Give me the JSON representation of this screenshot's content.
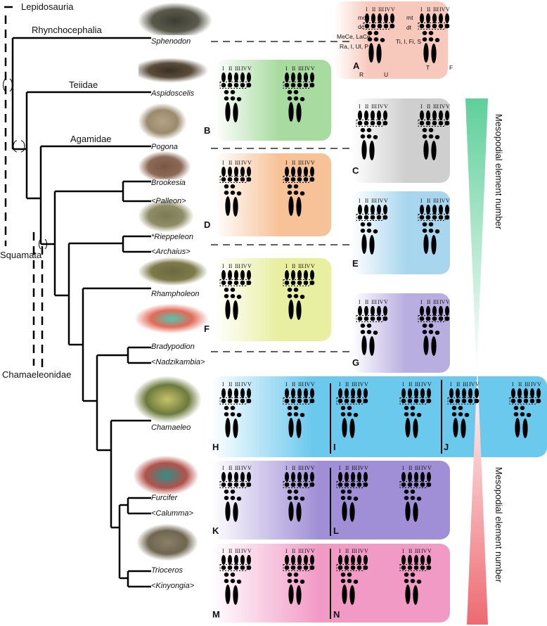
{
  "clades": {
    "lepidosauria": "Lepidosauria",
    "rhynchocephalia": "Rhynchocephalia",
    "teiidae": "Teiidae",
    "agamidae": "Agamidae",
    "squamata": "Squamata",
    "chamaeleonidae": "Chamaeleonidae"
  },
  "taxa": {
    "sphenodon": "Sphenodon",
    "aspidoscelis": "Aspidoscelis",
    "pogona": "Pogona",
    "brookesia": "Brookesia",
    "palleon": "<Palleon>",
    "rieppeleon": "*Rieppeleon",
    "archaius": "<Archaius>",
    "rhampholeon": "Rhampholeon",
    "bradypodion": "Bradypodion",
    "nadzikambia": "<Nadzikambia>",
    "chamaeleo": "Chamaeleo",
    "furcifer": "Furcifer",
    "calumma": "<Calumma>",
    "trioceros": "Trioceros",
    "kinyongia": "<Kinyongia>"
  },
  "panels": [
    "A",
    "B",
    "C",
    "D",
    "E",
    "F",
    "G",
    "H",
    "I",
    "J",
    "K",
    "L",
    "M",
    "N"
  ],
  "digits": [
    "I",
    "II",
    "III",
    "IV",
    "V"
  ],
  "legend_rows": {
    "left": [
      "mc",
      "dc",
      "MeCe, LaCe",
      "Ra, I, Ul, P"
    ],
    "right": [
      "mt",
      "dt",
      "Ti, I, Fi, S"
    ],
    "bones": [
      "R",
      "U",
      "T",
      "F"
    ]
  },
  "axis_label": "Mesopodial element number",
  "colors": {
    "A": "#f7c9bd",
    "B": "#a8dba0",
    "C": "#cfcfcf",
    "D": "#f7c298",
    "E": "#a9d6ef",
    "F": "#e8efa0",
    "G": "#b8aee0",
    "H": "#6cc9ee",
    "K": "#a08fd6",
    "M": "#f29ac6",
    "wedge_top": "#5fcf9a",
    "wedge_bottom": "#ee6a72"
  }
}
